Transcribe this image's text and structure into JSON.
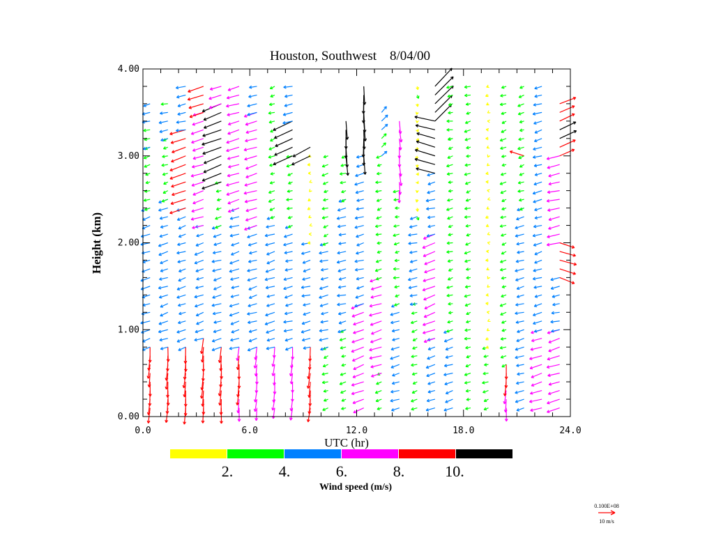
{
  "chart_data": {
    "type": "vector-wind-profile",
    "title": "Houston, Southwest    8/04/00",
    "xlabel": "UTC (hr)",
    "ylabel": "Height (km)",
    "xlim": [
      0,
      24
    ],
    "ylim": [
      0,
      4
    ],
    "xticks": [
      "0.0",
      "6.0",
      "12.0",
      "18.0",
      "24.0"
    ],
    "xtick_values": [
      0,
      6,
      12,
      18,
      24
    ],
    "yticks": [
      "0.00",
      "1.00",
      "2.00",
      "3.00",
      "4.00"
    ],
    "ytick_values": [
      0,
      1,
      2,
      3,
      4
    ],
    "gate_spacing_km": 0.1,
    "colorbar": {
      "label": "Wind speed (m/s)",
      "bins": [
        0,
        2,
        4,
        6,
        8,
        10,
        12
      ],
      "colors": [
        "#ffff00",
        "#00ff00",
        "#0080ff",
        "#ff00ff",
        "#ff0000",
        "#000000"
      ],
      "tick_labels": [
        "2.",
        "4.",
        "6.",
        "8.",
        "10."
      ]
    },
    "reference_vector": {
      "value_label": "0.100E+08",
      "unit_label": "10 m/s",
      "speed": 10,
      "color": "#ff0000"
    },
    "columns": [
      {
        "t": 0.4,
        "layers": [
          [
            0.1,
            0.8,
            -0.5,
            -8.5
          ],
          [
            0.8,
            2.4,
            -4.8,
            -1.5
          ],
          [
            2.4,
            3.1,
            -3,
            -1
          ],
          [
            3.1,
            3.6,
            -4,
            -1
          ]
        ]
      },
      {
        "t": 1.4,
        "layers": [
          [
            0.1,
            0.8,
            -0.4,
            -8.8
          ],
          [
            0.8,
            2.5,
            -4.8,
            -1.6
          ],
          [
            2.5,
            3.2,
            -3,
            -1
          ],
          [
            3.2,
            3.6,
            -4.5,
            -0.8
          ]
        ]
      },
      {
        "t": 2.4,
        "layers": [
          [
            0.1,
            0.8,
            -0.5,
            -9
          ],
          [
            0.8,
            2.4,
            -4.5,
            -1.5
          ],
          [
            2.4,
            3.3,
            -8.5,
            -3
          ],
          [
            3.3,
            3.8,
            -5,
            -1
          ]
        ]
      },
      {
        "t": 3.4,
        "layers": [
          [
            0.1,
            0.9,
            -0.6,
            -9.2
          ],
          [
            0.9,
            2.2,
            -4.6,
            -1.5
          ],
          [
            2.2,
            3.5,
            -6.5,
            -2
          ],
          [
            3.5,
            3.8,
            -8.5,
            -3
          ]
        ]
      },
      {
        "t": 4.4,
        "layers": [
          [
            0.1,
            0.8,
            -0.5,
            -8.5
          ],
          [
            0.8,
            2.2,
            -4.8,
            -1.4
          ],
          [
            2.2,
            2.7,
            -3,
            -1
          ],
          [
            2.7,
            3.6,
            -10.5,
            -4
          ],
          [
            3.6,
            3.8,
            -6.5,
            -2
          ]
        ]
      },
      {
        "t": 5.4,
        "layers": [
          [
            0.1,
            0.8,
            -0.5,
            -8.3
          ],
          [
            0.8,
            2.4,
            -5,
            -1.5
          ],
          [
            2.4,
            3.8,
            -6.8,
            -2
          ]
        ]
      },
      {
        "t": 6.4,
        "layers": [
          [
            0.1,
            0.8,
            -0.6,
            -6.8
          ],
          [
            0.8,
            2.2,
            -5,
            -1.5
          ],
          [
            2.2,
            3.5,
            -6.8,
            -2
          ],
          [
            3.5,
            3.8,
            -5,
            -1
          ]
        ]
      },
      {
        "t": 7.4,
        "layers": [
          [
            0.1,
            0.8,
            -0.6,
            -6.6
          ],
          [
            0.8,
            2.3,
            -5,
            -1.5
          ],
          [
            2.3,
            3.8,
            -3,
            -1
          ]
        ]
      },
      {
        "t": 8.4,
        "layers": [
          [
            0.1,
            0.8,
            -0.5,
            -6.6
          ],
          [
            0.8,
            2.2,
            -4.6,
            -1.2
          ],
          [
            2.2,
            3.0,
            -3,
            -0.8
          ],
          [
            3.0,
            3.4,
            -10.5,
            -5
          ],
          [
            3.4,
            3.8,
            -5,
            -1
          ]
        ]
      },
      {
        "t": 9.4,
        "layers": [
          [
            0.1,
            0.8,
            -0.8,
            -8.5
          ],
          [
            0.8,
            2.0,
            -4.6,
            -1.2
          ],
          [
            2.0,
            3.0,
            -1,
            -0.5
          ],
          [
            3.0,
            3.1,
            -10.5,
            -5
          ]
        ]
      },
      {
        "t": 10.4,
        "layers": [
          [
            0.1,
            0.8,
            -3,
            -1
          ],
          [
            0.8,
            2.0,
            -4.6,
            -1.2
          ],
          [
            2.0,
            3.0,
            -3,
            -1
          ]
        ]
      },
      {
        "t": 11.4,
        "layers": [
          [
            0.1,
            1.0,
            -3,
            -1
          ],
          [
            1.0,
            2.5,
            -4.6,
            -1
          ],
          [
            2.5,
            3.0,
            -3,
            -1
          ],
          [
            3.0,
            3.4,
            0.5,
            -11
          ]
        ]
      },
      {
        "t": 12.4,
        "layers": [
          [
            0.1,
            1.3,
            -6.5,
            -2.5
          ],
          [
            1.3,
            3.0,
            -4.6,
            -1.2
          ],
          [
            3.0,
            3.8,
            0.3,
            -11
          ]
        ]
      },
      {
        "t": 13.4,
        "layers": [
          [
            0.1,
            0.5,
            -3,
            -1
          ],
          [
            0.5,
            1.6,
            -6.5,
            -2
          ],
          [
            1.6,
            3.0,
            -3,
            -0.8
          ],
          [
            3.0,
            3.5,
            3,
            3
          ]
        ]
      },
      {
        "t": 14.4,
        "layers": [
          [
            0.1,
            1.3,
            -4.6,
            -1.4
          ],
          [
            1.3,
            2.6,
            -3,
            -0.6
          ],
          [
            2.6,
            3.4,
            0.5,
            -6.8
          ]
        ]
      },
      {
        "t": 15.4,
        "layers": [
          [
            0.1,
            1.3,
            -3,
            -1
          ],
          [
            1.3,
            2.3,
            -4.6,
            -1
          ],
          [
            2.3,
            3.8,
            0.2,
            -1.5
          ]
        ]
      },
      {
        "t": 16.4,
        "layers": [
          [
            0.1,
            0.9,
            -4.5,
            -1.5
          ],
          [
            0.9,
            2.1,
            -6.5,
            -2.5
          ],
          [
            2.1,
            2.8,
            -4.6,
            -1
          ],
          [
            2.8,
            3.4,
            -11,
            3
          ],
          [
            3.4,
            3.8,
            10,
            10
          ]
        ]
      },
      {
        "t": 17.4,
        "layers": [
          [
            0.1,
            1.0,
            -4.6,
            -1.4
          ],
          [
            1.0,
            3.2,
            -3,
            -0.8
          ],
          [
            3.2,
            3.8,
            -3,
            -0.5
          ]
        ]
      },
      {
        "t": 18.4,
        "layers": [
          [
            0.1,
            3.8,
            -3,
            -0.8
          ]
        ]
      },
      {
        "t": 19.4,
        "layers": [
          [
            0.1,
            0.8,
            -3,
            -0.8
          ],
          [
            0.8,
            3.8,
            -1,
            -0.3
          ]
        ]
      },
      {
        "t": 20.4,
        "layers": [
          [
            0.1,
            0.6,
            -0.5,
            -8
          ],
          [
            0.6,
            3.8,
            -3,
            -1
          ]
        ]
      },
      {
        "t": 21.4,
        "layers": [
          [
            0.1,
            2.4,
            -4.6,
            -1.2
          ],
          [
            2.4,
            3.0,
            -3,
            -1
          ],
          [
            3.0,
            3.0,
            -8,
            3
          ],
          [
            3.0,
            3.8,
            -3,
            -1
          ]
        ]
      },
      {
        "t": 22.4,
        "layers": [
          [
            0.1,
            1.0,
            -6.5,
            -2
          ],
          [
            1.0,
            3.8,
            -4.6,
            -1.3
          ]
        ]
      },
      {
        "t": 23.4,
        "layers": [
          [
            0.1,
            1.0,
            -6.8,
            -2
          ],
          [
            1.0,
            1.6,
            -4.6,
            -1
          ],
          [
            1.6,
            2.0,
            9,
            -3
          ],
          [
            2.0,
            3.0,
            -6.8,
            -1.5
          ],
          [
            3.0,
            3.6,
            9,
            4
          ]
        ]
      }
    ]
  }
}
